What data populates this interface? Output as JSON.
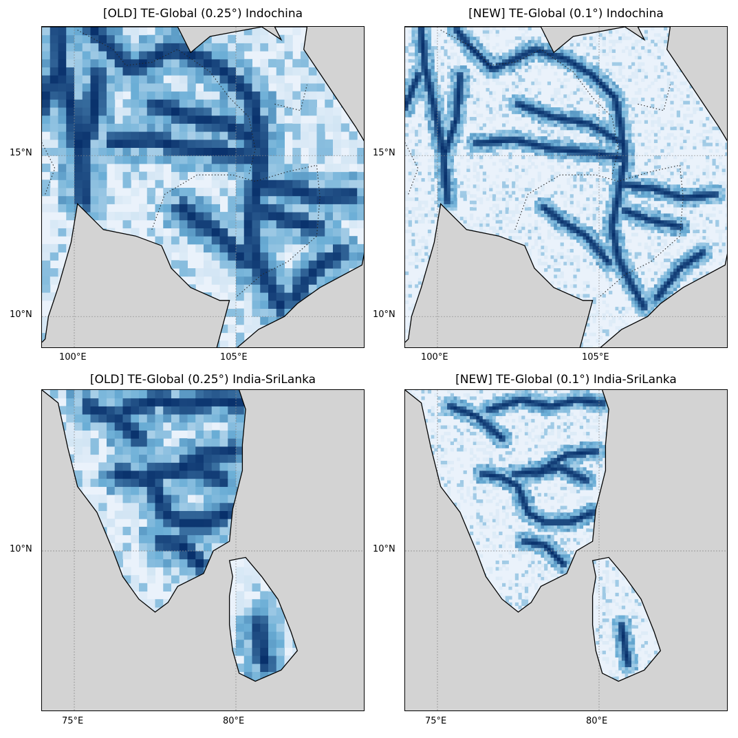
{
  "colors": {
    "ocean": "#d3d3d3",
    "low": "#eaf2fb",
    "mid": "#6baed6",
    "high": "#08306b",
    "coast": "#000000",
    "grid": "#888888"
  },
  "panels": [
    {
      "title": "[OLD] TE-Global (0.25°) Indochina",
      "region": "indochina",
      "resolution": 0.25,
      "lon_range": [
        99,
        109
      ],
      "lat_range": [
        9,
        19
      ],
      "gridlines": {
        "lon": [
          100,
          105
        ],
        "lat": [
          10,
          15
        ]
      },
      "lon_labels": [
        "100°E",
        "105°E"
      ],
      "lat_labels": [
        "15°N",
        "10°N"
      ],
      "borders_dotted": true
    },
    {
      "title": "[NEW] TE-Global (0.1°) Indochina",
      "region": "indochina",
      "resolution": 0.1,
      "lon_range": [
        99,
        109
      ],
      "lat_range": [
        9,
        19
      ],
      "gridlines": {
        "lon": [
          100,
          105
        ],
        "lat": [
          10,
          15
        ]
      },
      "lon_labels": [
        "100°E",
        "105°E"
      ],
      "lat_labels": [
        "15°N",
        "10°N"
      ],
      "borders_dotted": true
    },
    {
      "title": "[OLD] TE-Global (0.25°) India-SriLanka",
      "region": "india",
      "resolution": 0.25,
      "lon_range": [
        74,
        84
      ],
      "lat_range": [
        5,
        15
      ],
      "gridlines": {
        "lon": [
          75,
          80
        ],
        "lat": [
          10
        ]
      },
      "lon_labels": [
        "75°E",
        "80°E"
      ],
      "lat_labels": [
        "10°N"
      ],
      "borders_dotted": false
    },
    {
      "title": "[NEW] TE-Global (0.1°) India-SriLanka",
      "region": "india",
      "resolution": 0.1,
      "lon_range": [
        74,
        84
      ],
      "lat_range": [
        5,
        15
      ],
      "gridlines": {
        "lon": [
          75,
          80
        ],
        "lat": [
          10
        ]
      },
      "lon_labels": [
        "75°E",
        "80°E"
      ],
      "lat_labels": [
        "10°N"
      ],
      "borders_dotted": false
    }
  ]
}
